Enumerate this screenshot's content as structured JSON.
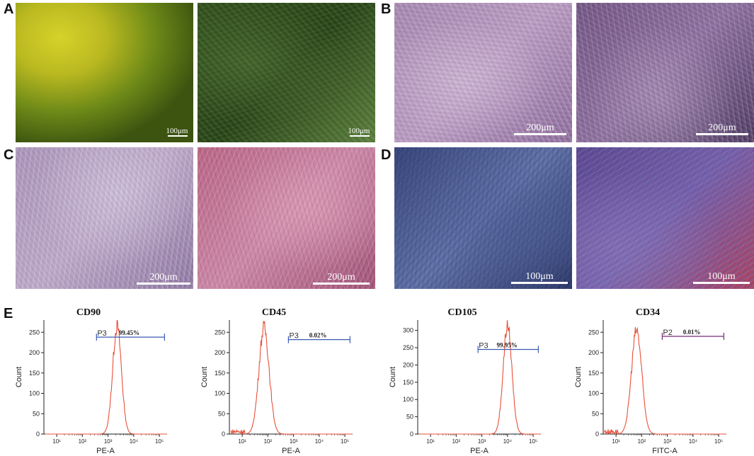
{
  "panels": {
    "A": "A",
    "B": "B",
    "C": "C",
    "D": "D",
    "E": "E"
  },
  "micrographs": [
    {
      "id": "A1",
      "scale": "100μm",
      "colors": [
        "#3d5410",
        "#c4c01e",
        "#6f8a18",
        "#2c4010"
      ]
    },
    {
      "id": "A2",
      "scale": "100μm",
      "colors": [
        "#2e4a1a",
        "#52763a",
        "#6b8f4b",
        "#233a14"
      ]
    },
    {
      "id": "B1",
      "scale": "200μm",
      "colors": [
        "#9c7ea6",
        "#d7c6df",
        "#7c5a8c",
        "#b899bf"
      ]
    },
    {
      "id": "B2",
      "scale": "200μm",
      "colors": [
        "#6a4c7a",
        "#b7a1c2",
        "#3b2a4f",
        "#8e72a0"
      ]
    },
    {
      "id": "C1",
      "scale": "200μm",
      "colors": [
        "#a28ab0",
        "#d9cde4",
        "#7d6591",
        "#bba7c6"
      ]
    },
    {
      "id": "C2",
      "scale": "200μm",
      "colors": [
        "#b05878",
        "#e3aac0",
        "#8c3f66",
        "#c98aa8"
      ]
    },
    {
      "id": "D1",
      "scale": "100μm",
      "colors": [
        "#2e3a6f",
        "#4d5f96",
        "#1f2754",
        "#6a7bb0"
      ]
    },
    {
      "id": "D2",
      "scale": "100μm",
      "colors": [
        "#4a3e8a",
        "#8a7fc0",
        "#b8384a",
        "#6d5fae"
      ]
    }
  ],
  "flow": [
    {
      "marker": "CD90",
      "gate": "P3",
      "percent": "99.45%",
      "xlabel": "PE-A",
      "ylabel": "Count",
      "yticks": [
        "0",
        "50",
        "100",
        "150",
        "200",
        "250"
      ],
      "ymax": 280,
      "peak": 265,
      "center": 3.35,
      "width": 0.17,
      "gate_range": [
        2.55,
        5.2
      ],
      "gate_y": 238,
      "gate_color": "#3b5bb0"
    },
    {
      "marker": "CD45",
      "gate": "P3",
      "percent": "0.02%",
      "xlabel": "PE-A",
      "ylabel": "Count",
      "yticks": [
        "0",
        "50",
        "100",
        "150",
        "200",
        "250"
      ],
      "ymax": 280,
      "peak": 262,
      "center": 1.85,
      "width": 0.2,
      "gate_range": [
        2.8,
        5.2
      ],
      "gate_y": 232,
      "gate_color": "#3b5bb0"
    },
    {
      "marker": "CD105",
      "gate": "P3",
      "percent": "99.95%",
      "xlabel": "PE-A",
      "ylabel": "Count",
      "yticks": [
        "0",
        "50",
        "100",
        "150",
        "200",
        "250",
        "300"
      ],
      "ymax": 330,
      "peak": 315,
      "center": 4.0,
      "width": 0.17,
      "gate_range": [
        2.85,
        5.2
      ],
      "gate_y": 245,
      "gate_color": "#3b5bb0"
    },
    {
      "marker": "CD34",
      "gate": "P2",
      "percent": "0.01%",
      "xlabel": "FITC-A",
      "ylabel": "Count",
      "yticks": [
        "0",
        "50",
        "100",
        "150",
        "200",
        "250"
      ],
      "ymax": 280,
      "peak": 255,
      "center": 1.8,
      "width": 0.2,
      "gate_range": [
        2.8,
        5.2
      ],
      "gate_y": 240,
      "gate_color": "#7a2a7a"
    }
  ],
  "xticks": [
    "10¹",
    "10²",
    "10³",
    "10⁴",
    "10⁵"
  ]
}
